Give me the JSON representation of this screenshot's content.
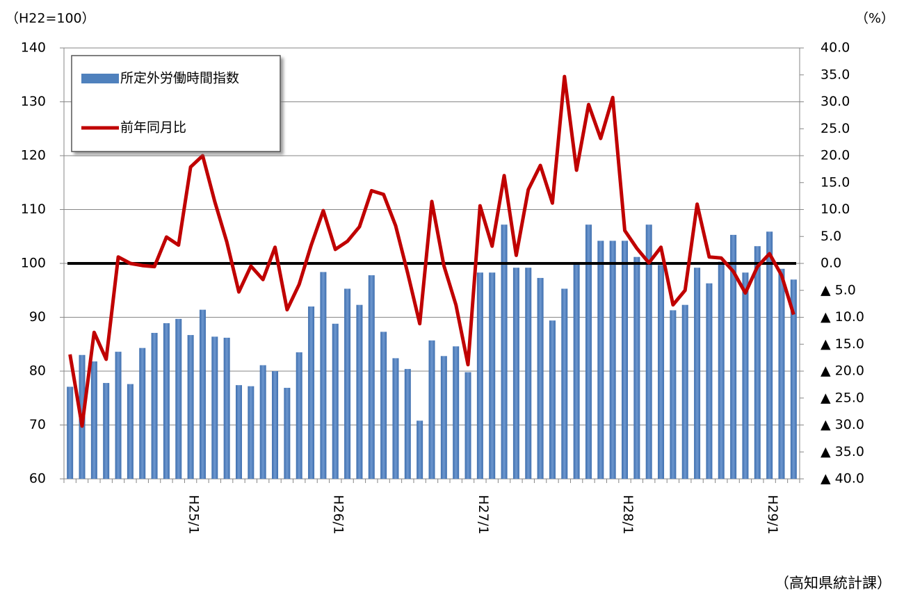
{
  "chart_data": {
    "type": "bar_line",
    "y_axis_label": "（H22=100）",
    "y2_axis_label": "（%）",
    "source": "（高知県統計課）",
    "categories": [
      null,
      null,
      null,
      null,
      null,
      null,
      null,
      null,
      null,
      null,
      "H25/1",
      null,
      null,
      null,
      null,
      null,
      null,
      null,
      null,
      null,
      null,
      null,
      "H26/1",
      null,
      null,
      null,
      null,
      null,
      null,
      null,
      null,
      null,
      null,
      null,
      "H27/1",
      null,
      null,
      null,
      null,
      null,
      null,
      null,
      null,
      null,
      null,
      null,
      "H28/1",
      null,
      null,
      null,
      null,
      null,
      null,
      null,
      null,
      null,
      null,
      null,
      "H29/1",
      null,
      null
    ],
    "series": [
      {
        "name": "所定外労働時間指数",
        "type": "bar",
        "color": "#4f81bd",
        "values": [
          77.1,
          83.0,
          81.8,
          77.8,
          83.6,
          77.6,
          84.3,
          87.1,
          88.9,
          89.7,
          86.7,
          91.4,
          86.4,
          86.2,
          77.4,
          77.2,
          81.1,
          80.0,
          76.9,
          83.5,
          92.0,
          98.4,
          88.8,
          95.3,
          92.3,
          97.8,
          87.3,
          82.4,
          80.4,
          70.8,
          85.7,
          82.8,
          84.6,
          79.8,
          98.3,
          98.3,
          107.2,
          99.2,
          99.2,
          97.3,
          89.4,
          95.3,
          99.8,
          107.2,
          104.2,
          104.2,
          104.2,
          101.2,
          107.2,
          99.7,
          91.3,
          92.3,
          99.2,
          96.3,
          100.3,
          105.3,
          98.3,
          103.2,
          105.9,
          99.0,
          97.0
        ]
      },
      {
        "name": "前年同月比",
        "type": "line",
        "axis": "y2",
        "color": "#c00000",
        "values": [
          -16.9,
          -30.2,
          -12.8,
          -17.8,
          1.2,
          0,
          -0.4,
          -0.6,
          4.9,
          3.4,
          17.9,
          20.0,
          11.5,
          4.0,
          -5.3,
          -0.5,
          -3.0,
          3.0,
          -8.6,
          -3.9,
          3.4,
          9.8,
          2.6,
          4.1,
          6.8,
          13.5,
          12.8,
          7.0,
          -1.8,
          -11.2,
          11.5,
          -0.4,
          -7.7,
          -18.8,
          10.7,
          3.2,
          16.3,
          1.5,
          13.7,
          18.2,
          11.2,
          34.7,
          17.3,
          29.5,
          23.2,
          30.8,
          6.1,
          2.8,
          0.1,
          3.0,
          -7.7,
          -5.0,
          11.0,
          1.2,
          1.0,
          -1.5,
          -5.5,
          -0.6,
          1.8,
          -2.2,
          -9.5
        ]
      }
    ],
    "ylim": [
      60,
      140
    ],
    "yticks": [
      60,
      70,
      80,
      90,
      100,
      110,
      120,
      130,
      140
    ],
    "y2lim": [
      -40,
      40
    ],
    "y2ticks": [
      {
        "value": -40,
        "label": "▲ 40.0"
      },
      {
        "value": -35,
        "label": "▲ 35.0"
      },
      {
        "value": -30,
        "label": "▲ 30.0"
      },
      {
        "value": -25,
        "label": "▲ 25.0"
      },
      {
        "value": -20,
        "label": "▲ 20.0"
      },
      {
        "value": -15,
        "label": "▲ 15.0"
      },
      {
        "value": -10,
        "label": "▲ 10.0"
      },
      {
        "value": -5,
        "label": "▲ 5.0"
      },
      {
        "value": 0,
        "label": "0.0"
      },
      {
        "value": 5,
        "label": "5.0"
      },
      {
        "value": 10,
        "label": "10.0"
      },
      {
        "value": 15,
        "label": "15.0"
      },
      {
        "value": 20,
        "label": "20.0"
      },
      {
        "value": 25,
        "label": "25.0"
      },
      {
        "value": 30,
        "label": "30.0"
      },
      {
        "value": 35,
        "label": "35.0"
      },
      {
        "value": 40,
        "label": "40.0"
      }
    ],
    "grid": true,
    "zero_line": true,
    "legend": "top-left"
  }
}
